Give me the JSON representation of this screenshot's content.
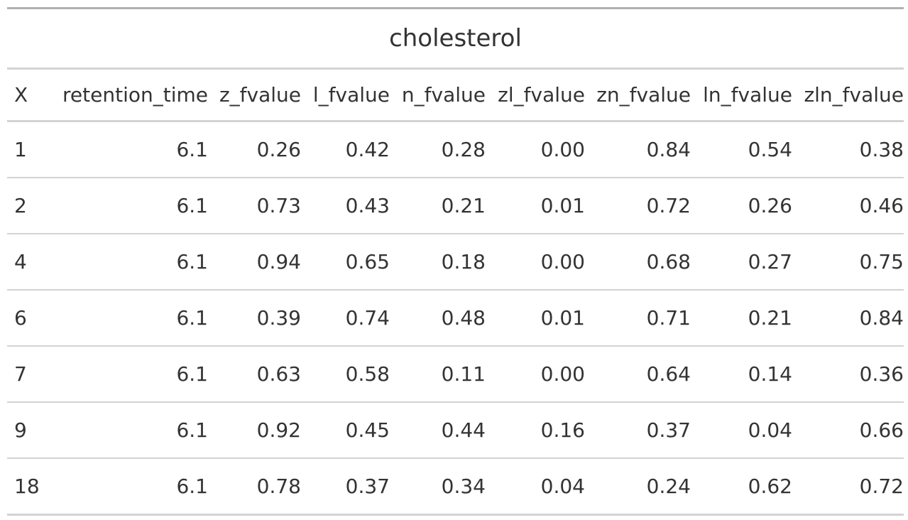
{
  "table": {
    "title": "cholesterol",
    "columns": [
      "X",
      "retention_time",
      "z_fvalue",
      "l_fvalue",
      "n_fvalue",
      "zl_fvalue",
      "zn_fvalue",
      "ln_fvalue",
      "zln_fvalue"
    ],
    "rows": [
      [
        "1",
        "6.1",
        "0.26",
        "0.42",
        "0.28",
        "0.00",
        "0.84",
        "0.54",
        "0.38"
      ],
      [
        "2",
        "6.1",
        "0.73",
        "0.43",
        "0.21",
        "0.01",
        "0.72",
        "0.26",
        "0.46"
      ],
      [
        "4",
        "6.1",
        "0.94",
        "0.65",
        "0.18",
        "0.00",
        "0.68",
        "0.27",
        "0.75"
      ],
      [
        "6",
        "6.1",
        "0.39",
        "0.74",
        "0.48",
        "0.01",
        "0.71",
        "0.21",
        "0.84"
      ],
      [
        "7",
        "6.1",
        "0.63",
        "0.58",
        "0.11",
        "0.00",
        "0.64",
        "0.14",
        "0.36"
      ],
      [
        "9",
        "6.1",
        "0.92",
        "0.45",
        "0.44",
        "0.16",
        "0.37",
        "0.04",
        "0.66"
      ],
      [
        "18",
        "6.1",
        "0.78",
        "0.37",
        "0.34",
        "0.04",
        "0.24",
        "0.62",
        "0.72"
      ]
    ]
  }
}
